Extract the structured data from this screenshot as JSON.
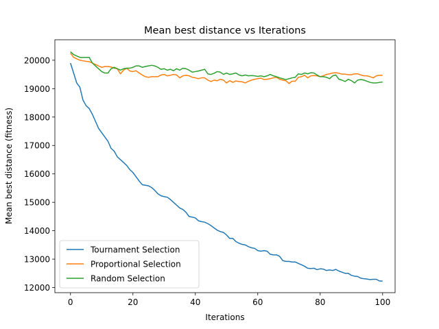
{
  "chart_data": {
    "type": "line",
    "title": "Mean best distance vs Iterations",
    "xlabel": "Iterations",
    "ylabel": "Mean best distance (fitness)",
    "xlim": [
      -5,
      104
    ],
    "ylim": [
      11820,
      20720
    ],
    "xticks": [
      0,
      20,
      40,
      60,
      80,
      100
    ],
    "yticks": [
      12000,
      13000,
      14000,
      15000,
      16000,
      17000,
      18000,
      19000,
      20000
    ],
    "grid": false,
    "legend": "lower-left",
    "series": [
      {
        "name": "Tournament Selection",
        "color": "#1f77b4",
        "points": [
          [
            0,
            19900
          ],
          [
            1,
            19550
          ],
          [
            2,
            19200
          ],
          [
            3,
            19050
          ],
          [
            4,
            18600
          ],
          [
            5,
            18400
          ],
          [
            6,
            18300
          ],
          [
            7,
            18100
          ],
          [
            8,
            17850
          ],
          [
            9,
            17600
          ],
          [
            10,
            17450
          ],
          [
            11,
            17300
          ],
          [
            12,
            17150
          ],
          [
            13,
            16900
          ],
          [
            14,
            16800
          ],
          [
            15,
            16600
          ],
          [
            16,
            16500
          ],
          [
            17,
            16400
          ],
          [
            18,
            16300
          ],
          [
            19,
            16150
          ],
          [
            20,
            16050
          ],
          [
            21,
            15900
          ],
          [
            22,
            15750
          ],
          [
            23,
            15620
          ],
          [
            24,
            15600
          ],
          [
            25,
            15580
          ],
          [
            26,
            15520
          ],
          [
            27,
            15420
          ],
          [
            28,
            15300
          ],
          [
            29,
            15230
          ],
          [
            30,
            15200
          ],
          [
            31,
            15180
          ],
          [
            32,
            15100
          ],
          [
            33,
            15000
          ],
          [
            34,
            14900
          ],
          [
            35,
            14800
          ],
          [
            36,
            14750
          ],
          [
            37,
            14650
          ],
          [
            38,
            14500
          ],
          [
            39,
            14480
          ],
          [
            40,
            14450
          ],
          [
            41,
            14350
          ],
          [
            42,
            14320
          ],
          [
            43,
            14300
          ],
          [
            44,
            14250
          ],
          [
            45,
            14180
          ],
          [
            46,
            14100
          ],
          [
            47,
            14020
          ],
          [
            48,
            13970
          ],
          [
            49,
            13940
          ],
          [
            50,
            13850
          ],
          [
            51,
            13730
          ],
          [
            52,
            13730
          ],
          [
            53,
            13620
          ],
          [
            54,
            13560
          ],
          [
            55,
            13520
          ],
          [
            56,
            13500
          ],
          [
            57,
            13440
          ],
          [
            58,
            13400
          ],
          [
            59,
            13380
          ],
          [
            60,
            13300
          ],
          [
            61,
            13280
          ],
          [
            62,
            13300
          ],
          [
            63,
            13280
          ],
          [
            64,
            13170
          ],
          [
            65,
            13150
          ],
          [
            66,
            13150
          ],
          [
            67,
            13100
          ],
          [
            68,
            12950
          ],
          [
            69,
            12920
          ],
          [
            70,
            12920
          ],
          [
            71,
            12900
          ],
          [
            72,
            12900
          ],
          [
            73,
            12850
          ],
          [
            74,
            12800
          ],
          [
            75,
            12750
          ],
          [
            76,
            12680
          ],
          [
            77,
            12670
          ],
          [
            78,
            12680
          ],
          [
            79,
            12630
          ],
          [
            80,
            12660
          ],
          [
            81,
            12650
          ],
          [
            82,
            12600
          ],
          [
            83,
            12620
          ],
          [
            84,
            12600
          ],
          [
            85,
            12640
          ],
          [
            86,
            12580
          ],
          [
            87,
            12540
          ],
          [
            88,
            12500
          ],
          [
            89,
            12500
          ],
          [
            90,
            12430
          ],
          [
            91,
            12400
          ],
          [
            92,
            12390
          ],
          [
            93,
            12330
          ],
          [
            94,
            12310
          ],
          [
            95,
            12300
          ],
          [
            96,
            12280
          ],
          [
            97,
            12290
          ],
          [
            98,
            12290
          ],
          [
            99,
            12230
          ],
          [
            100,
            12230
          ]
        ]
      },
      {
        "name": "Proportional Selection",
        "color": "#ff7f0e",
        "points": [
          [
            0,
            20250
          ],
          [
            1,
            20100
          ],
          [
            2,
            20050
          ],
          [
            3,
            20000
          ],
          [
            4,
            19980
          ],
          [
            5,
            19960
          ],
          [
            6,
            19950
          ],
          [
            7,
            19900
          ],
          [
            8,
            19850
          ],
          [
            9,
            19800
          ],
          [
            10,
            19750
          ],
          [
            11,
            19780
          ],
          [
            12,
            19780
          ],
          [
            13,
            19760
          ],
          [
            14,
            19720
          ],
          [
            15,
            19700
          ],
          [
            16,
            19520
          ],
          [
            17,
            19650
          ],
          [
            18,
            19720
          ],
          [
            19,
            19620
          ],
          [
            20,
            19600
          ],
          [
            21,
            19630
          ],
          [
            22,
            19550
          ],
          [
            23,
            19480
          ],
          [
            24,
            19420
          ],
          [
            25,
            19400
          ],
          [
            26,
            19420
          ],
          [
            27,
            19420
          ],
          [
            28,
            19420
          ],
          [
            29,
            19480
          ],
          [
            30,
            19500
          ],
          [
            31,
            19450
          ],
          [
            32,
            19470
          ],
          [
            33,
            19500
          ],
          [
            34,
            19480
          ],
          [
            35,
            19380
          ],
          [
            36,
            19450
          ],
          [
            37,
            19470
          ],
          [
            38,
            19450
          ],
          [
            39,
            19400
          ],
          [
            40,
            19380
          ],
          [
            41,
            19350
          ],
          [
            42,
            19380
          ],
          [
            43,
            19380
          ],
          [
            44,
            19300
          ],
          [
            45,
            19250
          ],
          [
            46,
            19300
          ],
          [
            47,
            19280
          ],
          [
            48,
            19330
          ],
          [
            49,
            19300
          ],
          [
            50,
            19200
          ],
          [
            51,
            19280
          ],
          [
            52,
            19220
          ],
          [
            53,
            19270
          ],
          [
            54,
            19250
          ],
          [
            55,
            19240
          ],
          [
            56,
            19200
          ],
          [
            57,
            19260
          ],
          [
            58,
            19300
          ],
          [
            59,
            19330
          ],
          [
            60,
            19350
          ],
          [
            61,
            19370
          ],
          [
            62,
            19320
          ],
          [
            63,
            19330
          ],
          [
            64,
            19350
          ],
          [
            65,
            19380
          ],
          [
            66,
            19400
          ],
          [
            67,
            19330
          ],
          [
            68,
            19300
          ],
          [
            69,
            19280
          ],
          [
            70,
            19180
          ],
          [
            71,
            19260
          ],
          [
            72,
            19260
          ],
          [
            73,
            19400
          ],
          [
            74,
            19420
          ],
          [
            75,
            19470
          ],
          [
            76,
            19380
          ],
          [
            77,
            19450
          ],
          [
            78,
            19460
          ],
          [
            79,
            19450
          ],
          [
            80,
            19420
          ],
          [
            81,
            19450
          ],
          [
            82,
            19500
          ],
          [
            83,
            19520
          ],
          [
            84,
            19550
          ],
          [
            85,
            19560
          ],
          [
            86,
            19540
          ],
          [
            87,
            19510
          ],
          [
            88,
            19510
          ],
          [
            89,
            19490
          ],
          [
            90,
            19490
          ],
          [
            91,
            19520
          ],
          [
            92,
            19520
          ],
          [
            93,
            19480
          ],
          [
            94,
            19450
          ],
          [
            95,
            19450
          ],
          [
            96,
            19420
          ],
          [
            97,
            19380
          ],
          [
            98,
            19450
          ],
          [
            99,
            19470
          ],
          [
            100,
            19470
          ]
        ]
      },
      {
        "name": "Random Selection",
        "color": "#2ca02c",
        "points": [
          [
            0,
            20300
          ],
          [
            1,
            20200
          ],
          [
            2,
            20150
          ],
          [
            3,
            20100
          ],
          [
            4,
            20100
          ],
          [
            5,
            20100
          ],
          [
            6,
            20100
          ],
          [
            7,
            19900
          ],
          [
            8,
            19800
          ],
          [
            9,
            19700
          ],
          [
            10,
            19600
          ],
          [
            11,
            19550
          ],
          [
            12,
            19550
          ],
          [
            13,
            19700
          ],
          [
            14,
            19750
          ],
          [
            15,
            19700
          ],
          [
            16,
            19650
          ],
          [
            17,
            19700
          ],
          [
            18,
            19720
          ],
          [
            19,
            19720
          ],
          [
            20,
            19750
          ],
          [
            21,
            19800
          ],
          [
            22,
            19800
          ],
          [
            23,
            19750
          ],
          [
            24,
            19780
          ],
          [
            25,
            19800
          ],
          [
            26,
            19820
          ],
          [
            27,
            19800
          ],
          [
            28,
            19750
          ],
          [
            29,
            19680
          ],
          [
            30,
            19700
          ],
          [
            31,
            19650
          ],
          [
            32,
            19680
          ],
          [
            33,
            19630
          ],
          [
            34,
            19700
          ],
          [
            35,
            19650
          ],
          [
            36,
            19720
          ],
          [
            37,
            19700
          ],
          [
            38,
            19650
          ],
          [
            39,
            19580
          ],
          [
            40,
            19600
          ],
          [
            41,
            19620
          ],
          [
            42,
            19650
          ],
          [
            43,
            19680
          ],
          [
            44,
            19520
          ],
          [
            45,
            19500
          ],
          [
            46,
            19540
          ],
          [
            47,
            19600
          ],
          [
            48,
            19580
          ],
          [
            49,
            19500
          ],
          [
            50,
            19550
          ],
          [
            51,
            19500
          ],
          [
            52,
            19520
          ],
          [
            53,
            19550
          ],
          [
            54,
            19480
          ],
          [
            55,
            19450
          ],
          [
            56,
            19480
          ],
          [
            57,
            19450
          ],
          [
            58,
            19460
          ],
          [
            59,
            19450
          ],
          [
            60,
            19430
          ],
          [
            61,
            19450
          ],
          [
            62,
            19420
          ],
          [
            63,
            19450
          ],
          [
            64,
            19500
          ],
          [
            65,
            19450
          ],
          [
            66,
            19420
          ],
          [
            67,
            19380
          ],
          [
            68,
            19350
          ],
          [
            69,
            19320
          ],
          [
            70,
            19350
          ],
          [
            71,
            19380
          ],
          [
            72,
            19400
          ],
          [
            73,
            19520
          ],
          [
            74,
            19500
          ],
          [
            75,
            19550
          ],
          [
            76,
            19520
          ],
          [
            77,
            19560
          ],
          [
            78,
            19550
          ],
          [
            79,
            19480
          ],
          [
            80,
            19420
          ],
          [
            81,
            19420
          ],
          [
            82,
            19400
          ],
          [
            83,
            19350
          ],
          [
            84,
            19450
          ],
          [
            85,
            19480
          ],
          [
            86,
            19330
          ],
          [
            87,
            19300
          ],
          [
            88,
            19250
          ],
          [
            89,
            19330
          ],
          [
            90,
            19280
          ],
          [
            91,
            19200
          ],
          [
            92,
            19300
          ],
          [
            93,
            19320
          ],
          [
            94,
            19300
          ],
          [
            95,
            19260
          ],
          [
            96,
            19220
          ],
          [
            97,
            19200
          ],
          [
            98,
            19200
          ],
          [
            99,
            19220
          ],
          [
            100,
            19230
          ]
        ]
      }
    ]
  }
}
